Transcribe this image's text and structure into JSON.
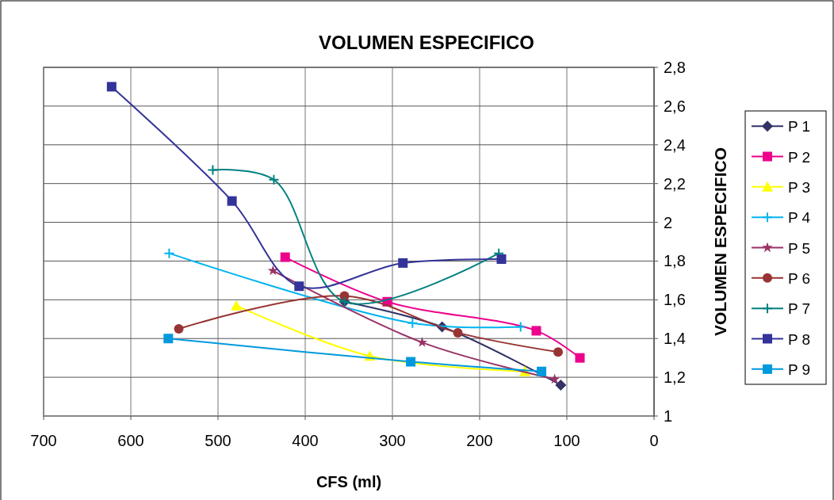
{
  "chart_data": {
    "type": "line",
    "title": "VOLUMEN ESPECIFICO",
    "xlabel": "CFS (ml)",
    "ylabel": "VOLUMEN ESPECIFICO",
    "xlim": [
      700,
      0
    ],
    "xticks": [
      700,
      600,
      500,
      400,
      300,
      200,
      100,
      0
    ],
    "ylim": [
      1,
      2.8
    ],
    "yticks": [
      1,
      {
        "value": 1.2,
        "label": "1,2"
      },
      {
        "value": 1.4,
        "label": "1,4"
      },
      {
        "value": 1.6,
        "label": "1,6"
      },
      {
        "value": 1.8,
        "label": "1,8"
      },
      2,
      {
        "value": 2.2,
        "label": "2,2"
      },
      {
        "value": 2.4,
        "label": "2,4"
      },
      {
        "value": 2.6,
        "label": "2,6"
      },
      {
        "value": 2.8,
        "label": "2,8"
      }
    ],
    "grid": true,
    "legend": "right",
    "series": [
      {
        "name": "P 1",
        "color": "#333366",
        "marker": "diamond",
        "x": [
          355,
          243,
          107
        ],
        "values": [
          1.59,
          1.46,
          1.16
        ]
      },
      {
        "name": "P 2",
        "color": "#ec008c",
        "marker": "square",
        "x": [
          423,
          306,
          135,
          85
        ],
        "values": [
          1.82,
          1.59,
          1.44,
          1.3
        ]
      },
      {
        "name": "P 3",
        "color": "#ffff00",
        "marker": "triangle",
        "x": [
          479,
          326,
          148
        ],
        "values": [
          1.57,
          1.31,
          1.23
        ]
      },
      {
        "name": "P 4",
        "color": "#00b4f0",
        "marker": "cross",
        "x": [
          556,
          277,
          153
        ],
        "values": [
          1.84,
          1.48,
          1.46
        ]
      },
      {
        "name": "P 5",
        "color": "#993366",
        "marker": "star",
        "x": [
          437,
          266,
          114
        ],
        "values": [
          1.75,
          1.38,
          1.19
        ]
      },
      {
        "name": "P 6",
        "color": "#993333",
        "marker": "circle",
        "x": [
          545,
          355,
          225,
          110
        ],
        "values": [
          1.45,
          1.62,
          1.43,
          1.33
        ]
      },
      {
        "name": "P 7",
        "color": "#008080",
        "marker": "cross",
        "x": [
          506,
          436,
          355,
          178
        ],
        "values": [
          2.27,
          2.22,
          1.59,
          1.84
        ]
      },
      {
        "name": "P 8",
        "color": "#333399",
        "marker": "square",
        "x": [
          622,
          484,
          407,
          288,
          175
        ],
        "values": [
          2.7,
          2.11,
          1.67,
          1.79,
          1.81
        ]
      },
      {
        "name": "P 9",
        "color": "#0099dd",
        "marker": "square",
        "x": [
          557,
          279,
          129
        ],
        "values": [
          1.4,
          1.28,
          1.23
        ]
      }
    ]
  }
}
